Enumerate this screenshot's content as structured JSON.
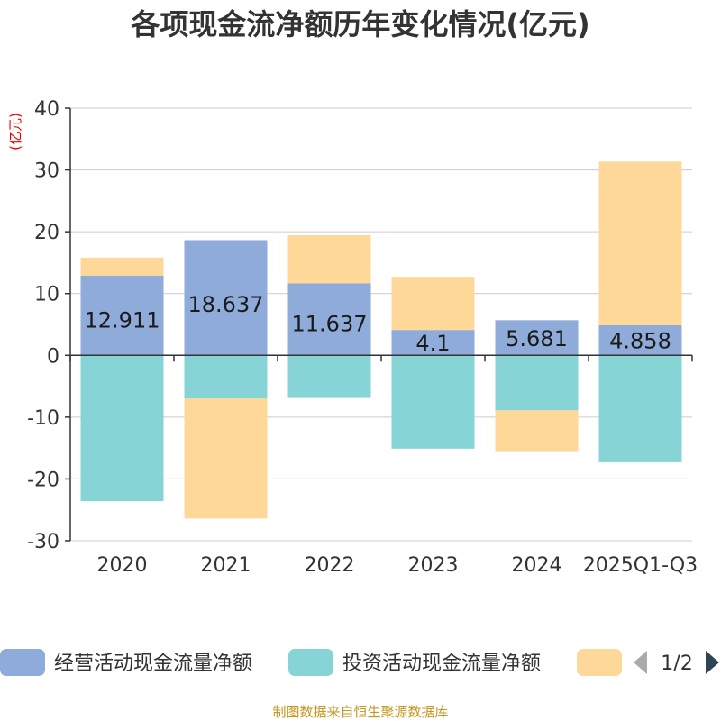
{
  "chart_data": {
    "type": "bar",
    "stacked": true,
    "title": "各项现金流净额历年变化情况(亿元)",
    "ylabel": "(亿元)",
    "ylim": [
      -30,
      40
    ],
    "yticks": [
      -30,
      -20,
      -10,
      0,
      10,
      20,
      30,
      40
    ],
    "grid": true,
    "categories": [
      "2020",
      "2021",
      "2022",
      "2023",
      "2024",
      "2025Q1-Q3"
    ],
    "series": [
      {
        "name": "经营活动现金流量净额",
        "color": "#8eabd9",
        "values": [
          12.911,
          18.637,
          11.637,
          4.1,
          5.681,
          4.858
        ],
        "labels": [
          "12.911",
          "18.637",
          "11.637",
          "4.1",
          "5.681",
          "4.858"
        ]
      },
      {
        "name": "投资活动现金流量净额",
        "color": "#86d4d6",
        "values": [
          -23.6,
          -7.0,
          -6.9,
          -15.1,
          -8.9,
          -17.3
        ]
      },
      {
        "name": "",
        "color": "#fdd898",
        "values": [
          2.9,
          -19.4,
          7.8,
          8.6,
          -6.6,
          26.5
        ]
      }
    ]
  },
  "legend": {
    "page": "1/2",
    "prev_icon": "triangle-left-icon",
    "next_icon": "triangle-right-icon"
  },
  "source": "制图数据来自恒生聚源数据库"
}
